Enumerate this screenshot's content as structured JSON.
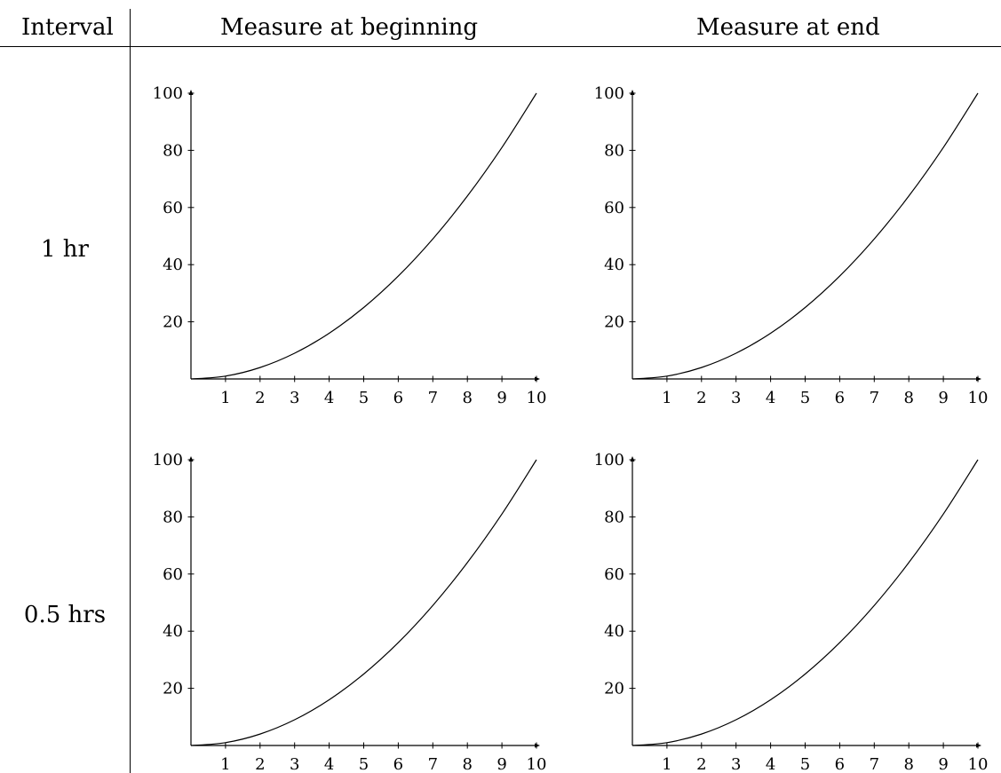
{
  "table": {
    "headers": {
      "interval": "Interval",
      "begin": "Measure at beginning",
      "end": "Measure at end"
    },
    "rows": [
      {
        "label": "1 hr"
      },
      {
        "label": "0.5 hrs"
      }
    ]
  },
  "chart_data": [
    {
      "id": "1hr-beginning",
      "type": "line",
      "title": "",
      "xlabel": "",
      "ylabel": "",
      "xlim": [
        0,
        10
      ],
      "ylim": [
        0,
        100
      ],
      "x_ticks": [
        1,
        2,
        3,
        4,
        5,
        6,
        7,
        8,
        9,
        10
      ],
      "y_ticks": [
        20,
        40,
        60,
        80,
        100
      ],
      "series": [
        {
          "x": [
            0,
            1,
            2,
            3,
            4,
            5,
            6,
            7,
            8,
            9,
            10
          ],
          "y": [
            0,
            1,
            4,
            9,
            16,
            25,
            36,
            49,
            64,
            81,
            100
          ]
        }
      ]
    },
    {
      "id": "1hr-end",
      "type": "line",
      "title": "",
      "xlabel": "",
      "ylabel": "",
      "xlim": [
        0,
        10
      ],
      "ylim": [
        0,
        100
      ],
      "x_ticks": [
        1,
        2,
        3,
        4,
        5,
        6,
        7,
        8,
        9,
        10
      ],
      "y_ticks": [
        20,
        40,
        60,
        80,
        100
      ],
      "series": [
        {
          "x": [
            0,
            1,
            2,
            3,
            4,
            5,
            6,
            7,
            8,
            9,
            10
          ],
          "y": [
            0,
            1,
            4,
            9,
            16,
            25,
            36,
            49,
            64,
            81,
            100
          ]
        }
      ]
    },
    {
      "id": "0.5hrs-beginning",
      "type": "line",
      "title": "",
      "xlabel": "",
      "ylabel": "",
      "xlim": [
        0,
        10
      ],
      "ylim": [
        0,
        100
      ],
      "x_ticks": [
        1,
        2,
        3,
        4,
        5,
        6,
        7,
        8,
        9,
        10
      ],
      "y_ticks": [
        20,
        40,
        60,
        80,
        100
      ],
      "series": [
        {
          "x": [
            0,
            1,
            2,
            3,
            4,
            5,
            6,
            7,
            8,
            9,
            10
          ],
          "y": [
            0,
            1,
            4,
            9,
            16,
            25,
            36,
            49,
            64,
            81,
            100
          ]
        }
      ]
    },
    {
      "id": "0.5hrs-end",
      "type": "line",
      "title": "",
      "xlabel": "",
      "ylabel": "",
      "xlim": [
        0,
        10
      ],
      "ylim": [
        0,
        100
      ],
      "x_ticks": [
        1,
        2,
        3,
        4,
        5,
        6,
        7,
        8,
        9,
        10
      ],
      "y_ticks": [
        20,
        40,
        60,
        80,
        100
      ],
      "series": [
        {
          "x": [
            0,
            1,
            2,
            3,
            4,
            5,
            6,
            7,
            8,
            9,
            10
          ],
          "y": [
            0,
            1,
            4,
            9,
            16,
            25,
            36,
            49,
            64,
            81,
            100
          ]
        }
      ]
    }
  ]
}
